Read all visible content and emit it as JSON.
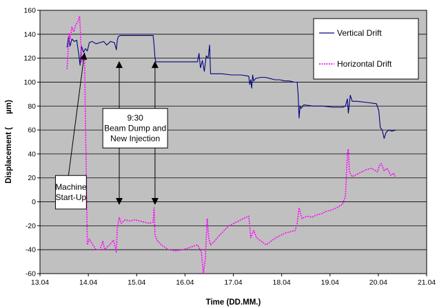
{
  "chart_data": {
    "type": "line",
    "title": "",
    "xlabel": "Time (DD.MM.)",
    "ylabel": "Displacement (      µm)",
    "xlim": [
      13.04,
      21.04
    ],
    "ylim": [
      -60,
      160
    ],
    "x_ticks": [
      {
        "value": 13.04,
        "label": "13.04"
      },
      {
        "value": 14.04,
        "label": "14.04"
      },
      {
        "value": 15.04,
        "label": "15.04"
      },
      {
        "value": 16.04,
        "label": "16.04"
      },
      {
        "value": 17.04,
        "label": "17.04"
      },
      {
        "value": 18.04,
        "label": "18.04"
      },
      {
        "value": 19.04,
        "label": "19.04"
      },
      {
        "value": 20.04,
        "label": "20.04"
      },
      {
        "value": 21.04,
        "label": "21.04"
      }
    ],
    "y_ticks": [
      -60,
      -40,
      -20,
      0,
      20,
      40,
      60,
      80,
      100,
      120,
      140,
      160
    ],
    "grid": {
      "horizontal": true,
      "vertical": false
    },
    "background": "#c0c0c0",
    "legend": {
      "placement": "top-right"
    },
    "series": [
      {
        "name": "Vertical Drift",
        "color": "#000080",
        "style": "solid",
        "points": [
          [
            13.6,
            129
          ],
          [
            13.63,
            138
          ],
          [
            13.66,
            130
          ],
          [
            13.7,
            136
          ],
          [
            13.75,
            134
          ],
          [
            13.8,
            135
          ],
          [
            13.84,
            124
          ],
          [
            13.87,
            114
          ],
          [
            13.9,
            130
          ],
          [
            13.94,
            125
          ],
          [
            13.98,
            128
          ],
          [
            14.02,
            126
          ],
          [
            14.06,
            133
          ],
          [
            14.12,
            134
          ],
          [
            14.2,
            132
          ],
          [
            14.28,
            133
          ],
          [
            14.36,
            134
          ],
          [
            14.42,
            131
          ],
          [
            14.5,
            134
          ],
          [
            14.58,
            133
          ],
          [
            14.62,
            127
          ],
          [
            14.64,
            135
          ],
          [
            14.66,
            138
          ],
          [
            14.7,
            139
          ],
          [
            14.9,
            139
          ],
          [
            15.1,
            139
          ],
          [
            15.3,
            139
          ],
          [
            15.38,
            139
          ],
          [
            15.4,
            131
          ],
          [
            15.42,
            120
          ],
          [
            15.44,
            117
          ],
          [
            15.5,
            117
          ],
          [
            15.8,
            117
          ],
          [
            16.1,
            117
          ],
          [
            16.3,
            117
          ],
          [
            16.33,
            124
          ],
          [
            16.36,
            112
          ],
          [
            16.4,
            118
          ],
          [
            16.44,
            109
          ],
          [
            16.48,
            122
          ],
          [
            16.52,
            120
          ],
          [
            16.55,
            131
          ],
          [
            16.57,
            107
          ],
          [
            16.6,
            107
          ],
          [
            16.8,
            107
          ],
          [
            17.0,
            106
          ],
          [
            17.2,
            106
          ],
          [
            17.36,
            105
          ],
          [
            17.38,
            98
          ],
          [
            17.4,
            102
          ],
          [
            17.42,
            95
          ],
          [
            17.44,
            106
          ],
          [
            17.46,
            101
          ],
          [
            17.5,
            103
          ],
          [
            17.6,
            104
          ],
          [
            17.7,
            104
          ],
          [
            17.8,
            103
          ],
          [
            17.9,
            102
          ],
          [
            18.0,
            102
          ],
          [
            18.1,
            101
          ],
          [
            18.2,
            101
          ],
          [
            18.3,
            100
          ],
          [
            18.36,
            100
          ],
          [
            18.38,
            90
          ],
          [
            18.4,
            70
          ],
          [
            18.42,
            80
          ],
          [
            18.44,
            78
          ],
          [
            18.5,
            81
          ],
          [
            18.7,
            80
          ],
          [
            18.9,
            80
          ],
          [
            19.1,
            79
          ],
          [
            19.3,
            79
          ],
          [
            19.36,
            80
          ],
          [
            19.4,
            86
          ],
          [
            19.42,
            74
          ],
          [
            19.46,
            89
          ],
          [
            19.5,
            84
          ],
          [
            19.6,
            84
          ],
          [
            19.8,
            83
          ],
          [
            20.0,
            82
          ],
          [
            20.05,
            76
          ],
          [
            20.08,
            62
          ],
          [
            20.12,
            60
          ],
          [
            20.16,
            53
          ],
          [
            20.2,
            58
          ],
          [
            20.26,
            60
          ],
          [
            20.32,
            59
          ],
          [
            20.4,
            60
          ]
        ]
      },
      {
        "name": "Horizontal Drift",
        "color": "#ff00ff",
        "style": "dotted",
        "points": [
          [
            13.6,
            111
          ],
          [
            13.62,
            126
          ],
          [
            13.64,
            141
          ],
          [
            13.66,
            136
          ],
          [
            13.7,
            146
          ],
          [
            13.74,
            142
          ],
          [
            13.78,
            148
          ],
          [
            13.82,
            150
          ],
          [
            13.86,
            155
          ],
          [
            13.88,
            140
          ],
          [
            13.9,
            117
          ],
          [
            13.93,
            120
          ],
          [
            13.96,
            125
          ],
          [
            13.98,
            70
          ],
          [
            14.0,
            20
          ],
          [
            14.02,
            -36
          ],
          [
            14.06,
            -31
          ],
          [
            14.12,
            -35
          ],
          [
            14.2,
            -40
          ],
          [
            14.28,
            -40
          ],
          [
            14.34,
            -33
          ],
          [
            14.38,
            -40
          ],
          [
            14.42,
            -38
          ],
          [
            14.48,
            -36
          ],
          [
            14.56,
            -32
          ],
          [
            14.62,
            -42
          ],
          [
            14.64,
            -22
          ],
          [
            14.68,
            -13
          ],
          [
            14.72,
            -18
          ],
          [
            14.8,
            -15
          ],
          [
            14.9,
            -16
          ],
          [
            15.0,
            -15
          ],
          [
            15.1,
            -16
          ],
          [
            15.2,
            -17
          ],
          [
            15.3,
            -18
          ],
          [
            15.38,
            -17
          ],
          [
            15.4,
            -5
          ],
          [
            15.42,
            -28
          ],
          [
            15.46,
            -32
          ],
          [
            15.55,
            -36
          ],
          [
            15.7,
            -40
          ],
          [
            15.85,
            -41
          ],
          [
            16.0,
            -40
          ],
          [
            16.15,
            -38
          ],
          [
            16.3,
            -36
          ],
          [
            16.38,
            -42
          ],
          [
            16.42,
            -60
          ],
          [
            16.46,
            -48
          ],
          [
            16.5,
            -14
          ],
          [
            16.53,
            -30
          ],
          [
            16.57,
            -36
          ],
          [
            16.65,
            -33
          ],
          [
            16.75,
            -28
          ],
          [
            16.85,
            -24
          ],
          [
            16.95,
            -20
          ],
          [
            17.05,
            -18
          ],
          [
            17.15,
            -16
          ],
          [
            17.25,
            -14
          ],
          [
            17.36,
            -12
          ],
          [
            17.38,
            -20
          ],
          [
            17.4,
            -30
          ],
          [
            17.46,
            -24
          ],
          [
            17.52,
            -30
          ],
          [
            17.62,
            -33
          ],
          [
            17.72,
            -36
          ],
          [
            17.82,
            -33
          ],
          [
            17.92,
            -30
          ],
          [
            18.02,
            -28
          ],
          [
            18.12,
            -26
          ],
          [
            18.22,
            -25
          ],
          [
            18.32,
            -24
          ],
          [
            18.36,
            -18
          ],
          [
            18.4,
            -5
          ],
          [
            18.46,
            -14
          ],
          [
            18.56,
            -12
          ],
          [
            18.66,
            -13
          ],
          [
            18.76,
            -11
          ],
          [
            18.86,
            -10
          ],
          [
            18.96,
            -8
          ],
          [
            19.06,
            -7
          ],
          [
            19.18,
            -5
          ],
          [
            19.3,
            -2
          ],
          [
            19.36,
            5
          ],
          [
            19.4,
            40
          ],
          [
            19.42,
            44
          ],
          [
            19.44,
            25
          ],
          [
            19.5,
            21
          ],
          [
            19.6,
            23
          ],
          [
            19.7,
            25
          ],
          [
            19.8,
            27
          ],
          [
            19.9,
            28
          ],
          [
            19.98,
            26
          ],
          [
            20.02,
            25
          ],
          [
            20.06,
            30
          ],
          [
            20.1,
            32
          ],
          [
            20.16,
            26
          ],
          [
            20.22,
            28
          ],
          [
            20.3,
            22
          ],
          [
            20.36,
            24
          ],
          [
            20.4,
            20
          ]
        ]
      }
    ],
    "annotations": [
      {
        "id": "machine-start-up",
        "lines": [
          "Machine",
          "Start-Up"
        ],
        "box": {
          "x1": 13.36,
          "x2": 14.0,
          "y1": -6,
          "y2": 22
        },
        "arrows": [
          {
            "from": [
              13.63,
              22
            ],
            "to": [
              13.96,
              124
            ]
          }
        ]
      },
      {
        "id": "beam-dump",
        "lines": [
          "9:30",
          "Beam Dump and",
          "New Injection"
        ],
        "box": {
          "x1": 14.34,
          "x2": 15.68,
          "y1": 45,
          "y2": 78
        },
        "arrows": [
          {
            "from": [
              14.68,
              78
            ],
            "to": [
              14.68,
              117
            ]
          },
          {
            "from": [
              15.42,
              78
            ],
            "to": [
              15.42,
              117
            ]
          },
          {
            "from": [
              14.68,
              45
            ],
            "to": [
              14.68,
              -2
            ]
          },
          {
            "from": [
              15.42,
              45
            ],
            "to": [
              15.42,
              -2
            ]
          }
        ]
      }
    ]
  }
}
